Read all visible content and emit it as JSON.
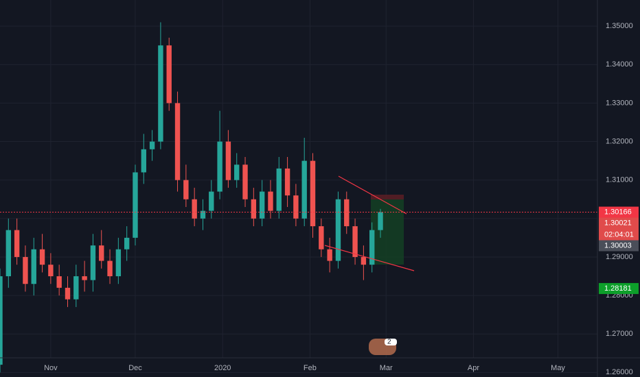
{
  "chart_data": {
    "type": "candlestick",
    "x": [
      0,
      3,
      6,
      9,
      12,
      15,
      18,
      21,
      24,
      27,
      30,
      33,
      36,
      39,
      42,
      45,
      48,
      51,
      54,
      57,
      60,
      63,
      66,
      69,
      72,
      75,
      78,
      81,
      84,
      87,
      90,
      93,
      96,
      99,
      102,
      105,
      108,
      111,
      114,
      117,
      120,
      123,
      126,
      129,
      132,
      135
    ],
    "open": [
      1.262,
      1.285,
      1.297,
      1.29,
      1.283,
      1.292,
      1.288,
      1.285,
      1.282,
      1.279,
      1.285,
      1.284,
      1.293,
      1.289,
      1.285,
      1.292,
      1.295,
      1.312,
      1.318,
      1.32,
      1.345,
      1.33,
      1.31,
      1.305,
      1.3,
      1.302,
      1.307,
      1.32,
      1.31,
      1.314,
      1.305,
      1.3,
      1.307,
      1.302,
      1.313,
      1.306,
      1.3,
      1.315,
      1.298,
      1.292,
      1.289,
      1.305,
      1.298,
      1.29,
      1.288,
      1.297
    ],
    "high": [
      1.287,
      1.3,
      1.3,
      1.293,
      1.295,
      1.296,
      1.291,
      1.288,
      1.285,
      1.288,
      1.289,
      1.296,
      1.297,
      1.292,
      1.295,
      1.298,
      1.314,
      1.322,
      1.323,
      1.351,
      1.347,
      1.333,
      1.314,
      1.308,
      1.305,
      1.31,
      1.328,
      1.323,
      1.317,
      1.316,
      1.308,
      1.31,
      1.31,
      1.316,
      1.316,
      1.309,
      1.321,
      1.317,
      1.3,
      1.295,
      1.307,
      1.307,
      1.3,
      1.293,
      1.299,
      1.3025
    ],
    "low": [
      1.26,
      1.282,
      1.288,
      1.281,
      1.28,
      1.286,
      1.283,
      1.28,
      1.277,
      1.277,
      1.281,
      1.281,
      1.287,
      1.283,
      1.283,
      1.289,
      1.293,
      1.309,
      1.315,
      1.318,
      1.328,
      1.307,
      1.303,
      1.298,
      1.297,
      1.3,
      1.305,
      1.308,
      1.308,
      1.303,
      1.298,
      1.298,
      1.3,
      1.3,
      1.303,
      1.298,
      1.298,
      1.295,
      1.29,
      1.286,
      1.287,
      1.296,
      1.288,
      1.284,
      1.286,
      1.295
    ],
    "close": [
      1.285,
      1.297,
      1.29,
      1.283,
      1.292,
      1.288,
      1.285,
      1.282,
      1.279,
      1.285,
      1.284,
      1.293,
      1.289,
      1.285,
      1.292,
      1.295,
      1.312,
      1.318,
      1.32,
      1.345,
      1.33,
      1.31,
      1.305,
      1.3,
      1.302,
      1.307,
      1.32,
      1.31,
      1.314,
      1.305,
      1.3,
      1.307,
      1.302,
      1.313,
      1.306,
      1.3,
      1.315,
      1.298,
      1.292,
      1.289,
      1.305,
      1.298,
      1.29,
      1.288,
      1.297,
      1.30166
    ],
    "up_color": "#26a69a",
    "down_color": "#ef5350",
    "xlim": [
      0,
      212
    ],
    "xticks": [
      {
        "value": 18,
        "label": "Nov"
      },
      {
        "value": 48,
        "label": "Dec"
      },
      {
        "value": 79,
        "label": "2020"
      },
      {
        "value": 110,
        "label": "Feb"
      },
      {
        "value": 137,
        "label": "Mar"
      },
      {
        "value": 168,
        "label": "Apr"
      },
      {
        "value": 198,
        "label": "May"
      }
    ],
    "ylim": [
      1.2638,
      1.3568
    ],
    "yticks": [
      {
        "value": 1.26,
        "label": "1.26000"
      },
      {
        "value": 1.27,
        "label": "1.27000"
      },
      {
        "value": 1.28,
        "label": "1.28000"
      },
      {
        "value": 1.29,
        "label": "1.29000"
      },
      {
        "value": 1.3,
        "label": "1.30000"
      },
      {
        "value": 1.31,
        "label": "1.31000"
      },
      {
        "value": 1.32,
        "label": "1.32000"
      },
      {
        "value": 1.33,
        "label": "1.33000"
      },
      {
        "value": 1.34,
        "label": "1.34000"
      },
      {
        "value": 1.35,
        "label": "1.35000"
      }
    ],
    "grid": true,
    "price_labels": [
      {
        "value": 1.30166,
        "label": "1.30166",
        "color": "#f23645"
      },
      {
        "value": 1.30021,
        "label": "1.30021",
        "color": "#e04b4b"
      },
      {
        "value": 1.30003,
        "label": "1.30003",
        "color": "#4a4e59"
      },
      {
        "value": 1.28181,
        "label": "1.28181",
        "color": "#0d9f2a"
      }
    ],
    "countdown": "02:04:01",
    "badge": "2"
  }
}
